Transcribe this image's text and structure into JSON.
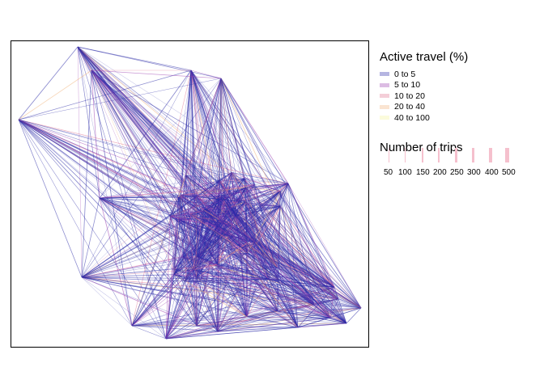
{
  "legend": {
    "active_travel_title": "Active travel (%)",
    "active_travel_items": [
      {
        "label": "0 to 5",
        "color": "#2b2ba8"
      },
      {
        "label": "5 to 10",
        "color": "#9b3fb0"
      },
      {
        "label": "10 to 20",
        "color": "#e0738f"
      },
      {
        "label": "20 to 40",
        "color": "#f0b27a"
      },
      {
        "label": "40 to 100",
        "color": "#f4f39a"
      }
    ],
    "trips_title": "Number of trips",
    "trips_items": [
      "50",
      "100",
      "150",
      "200",
      "250",
      "300",
      "400",
      "500"
    ],
    "trips_color": "#f5c0cd"
  },
  "map": {
    "line_colors": [
      "#2b2ba8",
      "#9b3fb0",
      "#e0738f",
      "#f0b27a",
      "#f4f39a"
    ]
  }
}
